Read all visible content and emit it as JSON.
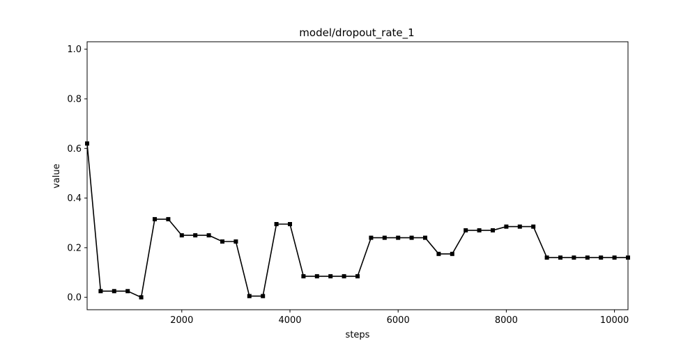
{
  "chart_data": {
    "type": "line",
    "title": "model/dropout_rate_1",
    "xlabel": "steps",
    "ylabel": "value",
    "xlim": [
      250,
      10250
    ],
    "ylim": [
      -0.05,
      1.03
    ],
    "xticks": [
      2000,
      4000,
      6000,
      8000,
      10000
    ],
    "xtick_labels": [
      "2000",
      "4000",
      "6000",
      "8000",
      "10000"
    ],
    "yticks": [
      0.0,
      0.2,
      0.4,
      0.6,
      0.8,
      1.0
    ],
    "ytick_labels": [
      "0.0",
      "0.2",
      "0.4",
      "0.6",
      "0.8",
      "1.0"
    ],
    "grid": false,
    "line_color": "#000000",
    "marker": "square",
    "series": [
      {
        "x": [
          250,
          500,
          750,
          1000,
          1250,
          1500,
          1750,
          2000,
          2250,
          2500,
          2750,
          3000,
          3250,
          3500,
          3750,
          4000,
          4250,
          4500,
          4750,
          5000,
          5250,
          5500,
          5750,
          6000,
          6250,
          6500,
          6750,
          7000,
          7250,
          7500,
          7750,
          8000,
          8250,
          8500,
          8750,
          9000,
          9250,
          9500,
          9750,
          10000,
          10250
        ],
        "values": [
          0.62,
          0.025,
          0.025,
          0.025,
          0.0,
          0.315,
          0.315,
          0.25,
          0.25,
          0.25,
          0.225,
          0.225,
          0.005,
          0.005,
          0.295,
          0.295,
          0.085,
          0.085,
          0.085,
          0.085,
          0.085,
          0.24,
          0.24,
          0.24,
          0.24,
          0.24,
          0.175,
          0.175,
          0.27,
          0.27,
          0.27,
          0.285,
          0.285,
          0.285,
          0.16,
          0.16,
          0.16,
          0.16,
          0.16,
          0.16,
          0.16
        ]
      }
    ]
  }
}
